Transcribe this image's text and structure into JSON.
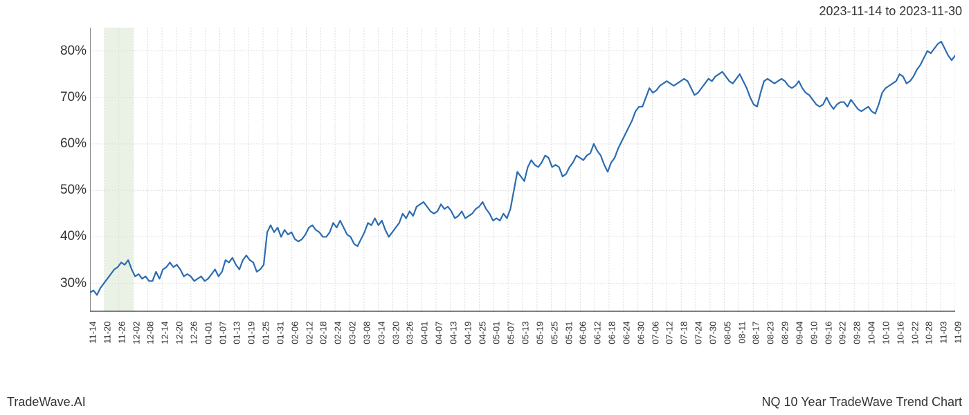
{
  "header": {
    "date_range": "2023-11-14 to 2023-11-30"
  },
  "footer": {
    "left": "TradeWave.AI",
    "right": "NQ 10 Year TradeWave Trend Chart"
  },
  "chart": {
    "type": "line",
    "background_color": "#ffffff",
    "grid_color": "#dcdcdc",
    "grid_dash": "2,2",
    "axis_line_color": "#333333",
    "text_color": "#333333",
    "line_color": "#2b6cb0",
    "line_width": 2.2,
    "highlight_band_color": "#d8e8d0",
    "highlight_band_opacity": 0.55,
    "ylim": [
      24,
      85
    ],
    "yticks": [
      30,
      40,
      50,
      60,
      70,
      80
    ],
    "ytick_suffix": "%",
    "ytick_fontsize": 19,
    "xtick_fontsize": 13,
    "xtick_rotation": -90,
    "x_labels": [
      "11-14",
      "11-20",
      "11-26",
      "12-02",
      "12-08",
      "12-14",
      "12-20",
      "12-26",
      "01-01",
      "01-07",
      "01-13",
      "01-19",
      "01-25",
      "01-31",
      "02-06",
      "02-12",
      "02-18",
      "02-24",
      "03-02",
      "03-08",
      "03-14",
      "03-20",
      "03-26",
      "04-01",
      "04-07",
      "04-13",
      "04-19",
      "04-25",
      "05-01",
      "05-07",
      "05-13",
      "05-19",
      "05-25",
      "05-31",
      "06-06",
      "06-12",
      "06-18",
      "06-24",
      "06-30",
      "07-06",
      "07-12",
      "07-18",
      "07-24",
      "07-30",
      "08-05",
      "08-11",
      "08-17",
      "08-23",
      "08-29",
      "09-04",
      "09-10",
      "09-16",
      "09-22",
      "09-28",
      "10-04",
      "10-10",
      "10-16",
      "10-22",
      "10-28",
      "11-03",
      "11-09"
    ],
    "highlight_x_start": 1,
    "highlight_x_end": 3,
    "values": [
      28,
      28.5,
      27.5,
      29,
      30,
      31,
      32,
      33,
      33.5,
      34.5,
      34,
      35,
      33,
      31.5,
      32,
      31,
      31.5,
      30.5,
      30.5,
      32.5,
      31,
      33,
      33.5,
      34.5,
      33.5,
      34,
      33,
      31.5,
      32,
      31.5,
      30.5,
      31,
      31.5,
      30.5,
      31,
      32,
      33,
      31.5,
      32.5,
      35,
      34.5,
      35.5,
      34,
      33,
      35,
      36,
      35,
      34.5,
      32.5,
      33,
      34,
      41,
      42.5,
      41,
      42,
      40,
      41.5,
      40.5,
      41,
      39.5,
      39,
      39.5,
      40.5,
      42,
      42.5,
      41.5,
      41,
      40,
      40,
      41,
      43,
      42,
      43.5,
      42,
      40.5,
      40,
      38.5,
      38,
      39.5,
      41,
      43,
      42.5,
      44,
      42.5,
      43.5,
      41.5,
      40,
      41,
      42,
      43,
      45,
      44,
      45.5,
      44.5,
      46.5,
      47,
      47.5,
      46.5,
      45.5,
      45,
      45.5,
      47,
      46,
      46.5,
      45.5,
      44,
      44.5,
      45.5,
      44,
      44.5,
      45,
      46,
      46.5,
      47.5,
      46,
      45,
      43.5,
      44,
      43.5,
      45,
      44,
      46,
      50,
      54,
      53,
      52,
      55,
      56.5,
      55.5,
      55,
      56,
      57.5,
      57,
      55,
      55.5,
      55,
      53,
      53.5,
      55,
      56,
      57.5,
      57,
      56.5,
      57.5,
      58,
      60,
      58.5,
      57.5,
      55.5,
      54,
      56,
      57,
      59,
      60.5,
      62,
      63.5,
      65,
      67,
      68,
      68,
      70,
      72,
      71,
      71.5,
      72.5,
      73,
      73.5,
      73,
      72.5,
      73,
      73.5,
      74,
      73.5,
      72,
      70.5,
      71,
      72,
      73,
      74,
      73.5,
      74.5,
      75,
      75.5,
      74.5,
      73.5,
      73,
      74,
      75,
      73.5,
      72,
      70,
      68.5,
      68,
      71,
      73.5,
      74,
      73.5,
      73,
      73.5,
      74,
      73.5,
      72.5,
      72,
      72.5,
      73.5,
      72,
      71,
      70.5,
      69.5,
      68.5,
      68,
      68.5,
      70,
      68.5,
      67.5,
      68.5,
      69,
      69,
      68,
      69.5,
      68.5,
      67.5,
      67,
      67.5,
      68,
      67,
      66.5,
      68.5,
      71,
      72,
      72.5,
      73,
      73.5,
      75,
      74.5,
      73,
      73.5,
      74.5,
      76,
      77,
      78.5,
      80,
      79.5,
      80.5,
      81.5,
      82,
      80.5,
      79,
      78,
      79
    ]
  }
}
